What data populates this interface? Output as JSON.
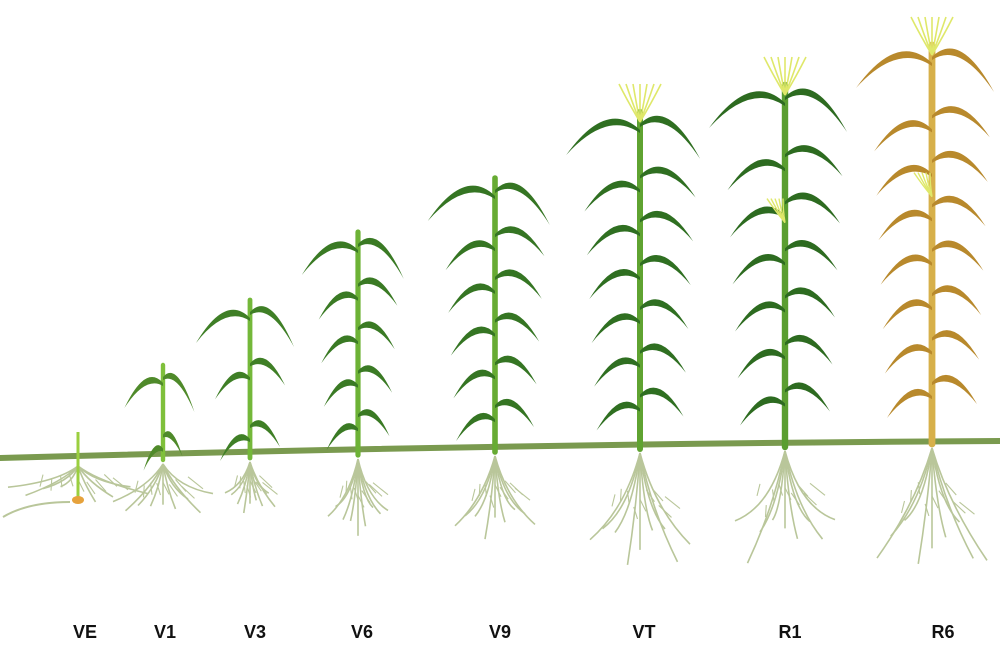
{
  "stages": [
    {
      "label": "VE",
      "color_leaf": "#5f8f2c",
      "color_stem": "#9bcf3f",
      "tassel": false,
      "ear": false
    },
    {
      "label": "V1",
      "color_leaf": "#4f8a2a",
      "color_stem": "#7fc03b",
      "tassel": false,
      "ear": false
    },
    {
      "label": "V3",
      "color_leaf": "#3f7f26",
      "color_stem": "#74b83a",
      "tassel": false,
      "ear": false
    },
    {
      "label": "V6",
      "color_leaf": "#3a7a24",
      "color_stem": "#6db236",
      "tassel": false,
      "ear": false
    },
    {
      "label": "V9",
      "color_leaf": "#357523",
      "color_stem": "#67ab33",
      "tassel": false,
      "ear": false
    },
    {
      "label": "VT",
      "color_leaf": "#2f6f21",
      "color_stem": "#5fa331",
      "tassel": true,
      "ear": false
    },
    {
      "label": "R1",
      "color_leaf": "#2d6b20",
      "color_stem": "#5a9e30",
      "tassel": true,
      "ear": true
    },
    {
      "label": "R6",
      "color_leaf": "#b8892c",
      "color_stem": "#d7b04a",
      "tassel": true,
      "ear": true
    }
  ],
  "colors": {
    "ground": "#7a9a4f",
    "root": "#b9c69a",
    "tassel": "#dfe86a",
    "label": "#111111"
  }
}
